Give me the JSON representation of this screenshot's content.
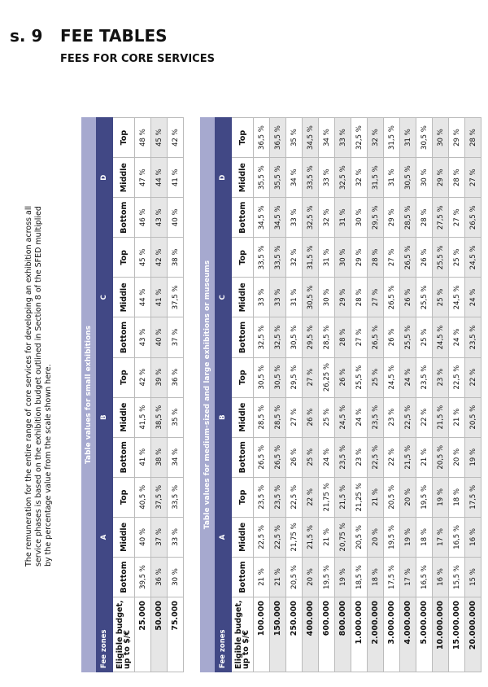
{
  "header": {
    "section": "s. 9",
    "title": "FEE TABLES",
    "subtitle": "FEES FOR CORE SERVICES"
  },
  "intro": "The remuneration for the entire range of core services for developing an exhibition across all service phases is based on the exhibition budget outlined in Section 8 of the SFED multiplied by the percentage value from the scale shown here.",
  "tables": [
    {
      "title": "Table values for small exhibitions",
      "zone_header": "Fee zones",
      "zones": [
        "A",
        "B",
        "C",
        "D"
      ],
      "budget_header": "Eligible budget, up to $/€",
      "levels": [
        "Bottom",
        "Middle",
        "Top"
      ],
      "rows": [
        {
          "budget": "25.000",
          "values": [
            "39,5 %",
            "40 %",
            "40,5 %",
            "41 %",
            "41,5 %",
            "42 %",
            "43 %",
            "44 %",
            "45 %",
            "46 %",
            "47 %",
            "48 %"
          ]
        },
        {
          "budget": "50.000",
          "values": [
            "36 %",
            "37 %",
            "37,5 %",
            "38 %",
            "38,5 %",
            "39 %",
            "40 %",
            "41 %",
            "42 %",
            "43 %",
            "44 %",
            "45 %"
          ]
        },
        {
          "budget": "75.000",
          "values": [
            "30 %",
            "33 %",
            "33,5 %",
            "34 %",
            "35 %",
            "36 %",
            "37 %",
            "37,5 %",
            "38 %",
            "40 %",
            "41 %",
            "42 %"
          ]
        }
      ]
    },
    {
      "title": "Table values for medium-sized and large exhibitions or museums",
      "zone_header": "Fee zones",
      "zones": [
        "A",
        "B",
        "C",
        "D"
      ],
      "budget_header": "Eligible budget, up to $/€",
      "levels": [
        "Bottom",
        "Middle",
        "Top"
      ],
      "rows": [
        {
          "budget": "100.000",
          "values": [
            "21 %",
            "22,5 %",
            "23,5 %",
            "26,5 %",
            "28,5 %",
            "30,5 %",
            "32,5 %",
            "33 %",
            "33,5 %",
            "34,5 %",
            "35,5 %",
            "36,5 %"
          ]
        },
        {
          "budget": "150.000",
          "values": [
            "21 %",
            "22,5 %",
            "23,5 %",
            "26,5 %",
            "28,5 %",
            "30,5 %",
            "32,5 %",
            "33 %",
            "33,5 %",
            "34,5 %",
            "35,5 %",
            "36,5 %"
          ]
        },
        {
          "budget": "250.000",
          "values": [
            "20,5 %",
            "21,75 %",
            "22,5 %",
            "26 %",
            "27 %",
            "29,5 %",
            "30,5 %",
            "31 %",
            "32 %",
            "33 %",
            "34 %",
            "35 %"
          ]
        },
        {
          "budget": "400.000",
          "values": [
            "20 %",
            "21,5 %",
            "22 %",
            "25 %",
            "26 %",
            "27 %",
            "29,5 %",
            "30,5 %",
            "31,5 %",
            "32,5 %",
            "33,5 %",
            "34,5 %"
          ]
        },
        {
          "budget": "600.000",
          "values": [
            "19,5 %",
            "21 %",
            "21,75 %",
            "24 %",
            "25 %",
            "26,25 %",
            "28,5 %",
            "30 %",
            "31 %",
            "32 %",
            "33 %",
            "34 %"
          ]
        },
        {
          "budget": "800.000",
          "values": [
            "19 %",
            "20,75 %",
            "21,5 %",
            "23,5 %",
            "24,5 %",
            "26 %",
            "28 %",
            "29 %",
            "30 %",
            "31 %",
            "32,5 %",
            "33 %"
          ]
        },
        {
          "budget": "1.000.000",
          "values": [
            "18,5 %",
            "20,5 %",
            "21,25 %",
            "23 %",
            "24 %",
            "25,5 %",
            "27 %",
            "28 %",
            "29 %",
            "30 %",
            "32 %",
            "32,5 %"
          ]
        },
        {
          "budget": "2.000.000",
          "values": [
            "18 %",
            "20 %",
            "21 %",
            "22,5 %",
            "23,5 %",
            "25 %",
            "26,5 %",
            "27 %",
            "28 %",
            "29,5 %",
            "31,5 %",
            "32 %"
          ]
        },
        {
          "budget": "3.000.000",
          "values": [
            "17,5 %",
            "19,5 %",
            "20,5 %",
            "22 %",
            "23 %",
            "24,5 %",
            "26 %",
            "26,5 %",
            "27 %",
            "29 %",
            "31 %",
            "31,5 %"
          ]
        },
        {
          "budget": "4.000.000",
          "values": [
            "17 %",
            "19 %",
            "20 %",
            "21,5 %",
            "22,5 %",
            "24 %",
            "25,5 %",
            "26 %",
            "26,5 %",
            "28,5 %",
            "30,5 %",
            "31 %"
          ]
        },
        {
          "budget": "5.000.000",
          "values": [
            "16,5 %",
            "18 %",
            "19,5 %",
            "21 %",
            "22 %",
            "23,5 %",
            "25 %",
            "25,5 %",
            "26 %",
            "28 %",
            "30 %",
            "30,5 %"
          ]
        },
        {
          "budget": "10.000.000",
          "values": [
            "16 %",
            "17 %",
            "19 %",
            "20,5 %",
            "21,5 %",
            "23 %",
            "24,5 %",
            "25 %",
            "25,5 %",
            "27,5 %",
            "29 %",
            "30 %"
          ]
        },
        {
          "budget": "15.000.000",
          "values": [
            "15,5 %",
            "16,5 %",
            "18 %",
            "20 %",
            "21 %",
            "22,5 %",
            "24 %",
            "24,5 %",
            "25 %",
            "27 %",
            "28 %",
            "29 %"
          ]
        },
        {
          "budget": "20.000.000",
          "values": [
            "15 %",
            "16 %",
            "17,5 %",
            "19 %",
            "20,5 %",
            "22 %",
            "23,5 %",
            "24 %",
            "24,5 %",
            "26,5 %",
            "27 %",
            "28 %"
          ]
        }
      ]
    }
  ]
}
